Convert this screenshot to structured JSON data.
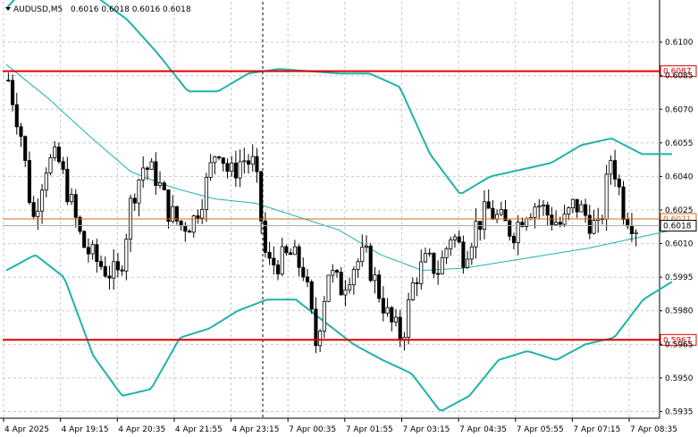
{
  "header": {
    "symbol": "AUDUSD,M5",
    "ohlc": "0.6016 0.6018 0.6016 0.6018"
  },
  "colors": {
    "background": "#ffffff",
    "grid": "#c8c8c8",
    "candle": "#000000",
    "bollinger": "#20b2aa",
    "level_line": "#e00000",
    "current_line": "#d2691e",
    "bid_line": "#a9a9a9"
  },
  "chart_data": {
    "type": "candlestick",
    "symbol": "AUDUSD",
    "timeframe": "M5",
    "ylim": [
      0.5932,
      0.6118
    ],
    "y_ticks": [
      "0.6100",
      "0.6085",
      "0.6070",
      "0.6055",
      "0.6040",
      "0.6025",
      "0.6010",
      "0.5995",
      "0.5980",
      "0.5965",
      "0.5950",
      "0.5935"
    ],
    "x_ticks": [
      "4 Apr 2025",
      "4 Apr 19:15",
      "4 Apr 20:35",
      "4 Apr 21:55",
      "4 Apr 23:15",
      "7 Apr 00:35",
      "7 Apr 01:55",
      "7 Apr 03:15",
      "7 Apr 04:35",
      "7 Apr 05:55",
      "7 Apr 07:15",
      "7 Apr 08:35"
    ],
    "levels": [
      {
        "label": "0.6087",
        "value": 0.6087,
        "role": "resistance"
      },
      {
        "label": "0.5967",
        "value": 0.5967,
        "role": "support"
      }
    ],
    "current_price_label": "0.6021",
    "current_price": 0.6021,
    "bid_label": "0.6018",
    "bid": 0.6018,
    "session_separator_index": 16,
    "key_closes": [
      0.6083,
      0.606,
      0.602,
      0.6045,
      0.6048,
      0.603,
      0.601,
      0.6003,
      0.5998,
      0.5995,
      0.603,
      0.6045,
      0.604,
      0.6025,
      0.6018,
      0.602,
      0.6035,
      0.6055,
      0.604,
      0.6048,
      0.6045,
      0.6,
      0.6002,
      0.6005,
      0.5998,
      0.5965,
      0.5998,
      0.599,
      0.6,
      0.6005,
      0.599,
      0.5975,
      0.5968,
      0.5995,
      0.6002,
      0.5998,
      0.6015,
      0.6005,
      0.6018,
      0.6025,
      0.602,
      0.6015,
      0.6025,
      0.6028,
      0.6022,
      0.6018,
      0.6028,
      0.6022,
      0.6015,
      0.605,
      0.6025,
      0.6018
    ],
    "bollinger_upper_key": [
      0.6115,
      0.613,
      0.6128,
      0.612,
      0.611,
      0.6095,
      0.6078,
      0.6078,
      0.6086,
      0.6088,
      0.6087,
      0.6086,
      0.6086,
      0.608,
      0.605,
      0.6032,
      0.604,
      0.6043,
      0.6046,
      0.6054,
      0.6057,
      0.605,
      0.605
    ],
    "bollinger_mid_key": [
      0.609,
      0.6075,
      0.6058,
      0.6042,
      0.6035,
      0.603,
      0.6028,
      0.6022,
      0.6016,
      0.6005,
      0.5998,
      0.5999,
      0.6002,
      0.6005,
      0.6008,
      0.6012,
      0.6016
    ],
    "bollinger_lower_key": [
      0.5998,
      0.6005,
      0.5995,
      0.596,
      0.5942,
      0.5945,
      0.5968,
      0.5972,
      0.598,
      0.5985,
      0.5985,
      0.5975,
      0.5965,
      0.5958,
      0.5952,
      0.5935,
      0.5942,
      0.5958,
      0.5962,
      0.5958,
      0.5965,
      0.5968,
      0.5985,
      0.5993
    ]
  }
}
